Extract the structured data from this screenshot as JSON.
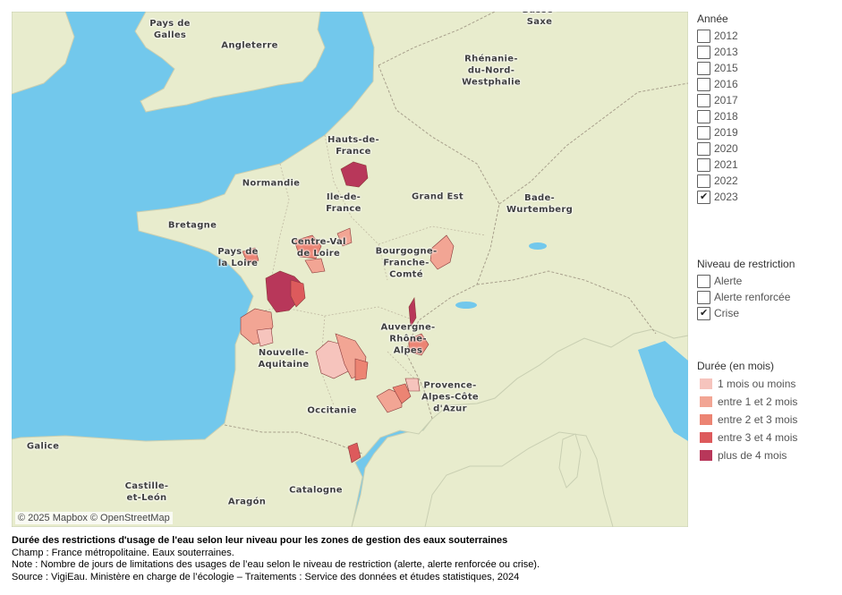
{
  "map": {
    "attribution": "© 2025 Mapbox © OpenStreetMap",
    "places": [
      {
        "id": "pays-de-galles",
        "text": "Pays de\nGalles"
      },
      {
        "id": "angleterre",
        "text": "Angleterre"
      },
      {
        "id": "basse-saxe",
        "text": "Basse-\nSaxe"
      },
      {
        "id": "rhenanie",
        "text": "Rhénanie-\ndu-Nord-\nWestphalie"
      },
      {
        "id": "hauts-de-france",
        "text": "Hauts-de-\nFrance"
      },
      {
        "id": "normandie",
        "text": "Normandie"
      },
      {
        "id": "ile-de-france",
        "text": "Ile-de-\nFrance"
      },
      {
        "id": "grand-est",
        "text": "Grand Est"
      },
      {
        "id": "bade-wurtemberg",
        "text": "Bade-\nWurtemberg"
      },
      {
        "id": "bretagne",
        "text": "Bretagne"
      },
      {
        "id": "pays-de-la-loire",
        "text": "Pays de\nla Loire"
      },
      {
        "id": "centre-val-de-loire",
        "text": "Centre-Val\nde Loire"
      },
      {
        "id": "bourgogne",
        "text": "Bourgogne-\nFranche-\nComté"
      },
      {
        "id": "auvergne",
        "text": "Auvergne-\nRhône-\nAlpes"
      },
      {
        "id": "nouvelle-aquitaine",
        "text": "Nouvelle-\nAquitaine"
      },
      {
        "id": "provence",
        "text": "Provence-\nAlpes-Côte\nd'Azur"
      },
      {
        "id": "occitanie",
        "text": "Occitanie"
      },
      {
        "id": "galice",
        "text": "Galice"
      },
      {
        "id": "castille",
        "text": "Castille-\net-León"
      },
      {
        "id": "aragon",
        "text": "Aragón"
      },
      {
        "id": "catalogne",
        "text": "Catalogne"
      }
    ]
  },
  "filters": {
    "annee": {
      "title": "Année",
      "options": [
        {
          "label": "2012",
          "checked": false
        },
        {
          "label": "2013",
          "checked": false
        },
        {
          "label": "2015",
          "checked": false
        },
        {
          "label": "2016",
          "checked": false
        },
        {
          "label": "2017",
          "checked": false
        },
        {
          "label": "2018",
          "checked": false
        },
        {
          "label": "2019",
          "checked": false
        },
        {
          "label": "2020",
          "checked": false
        },
        {
          "label": "2021",
          "checked": false
        },
        {
          "label": "2022",
          "checked": false
        },
        {
          "label": "2023",
          "checked": true
        }
      ]
    },
    "niveau": {
      "title": "Niveau de restriction",
      "options": [
        {
          "label": "Alerte",
          "checked": false
        },
        {
          "label": "Alerte renforcée",
          "checked": false
        },
        {
          "label": "Crise",
          "checked": true
        }
      ]
    }
  },
  "legend": {
    "title": "Durée (en mois)",
    "items": [
      {
        "label": "1 mois ou moins",
        "color": "#f6c4bd"
      },
      {
        "label": "entre 1 et 2 mois",
        "color": "#f2a594"
      },
      {
        "label": "entre 2 et 3 mois",
        "color": "#ec8473"
      },
      {
        "label": "entre 3 et 4 mois",
        "color": "#dd5a5c"
      },
      {
        "label": "plus de 4 mois",
        "color": "#b8375a"
      }
    ]
  },
  "colors": {
    "water": "#72c8ec",
    "land": "#e8eccd",
    "border": "#a8a08c"
  },
  "footer": {
    "title": "Durée des restrictions d'usage de l'eau selon leur niveau pour les zones de gestion des eaux souterraines",
    "champ": "Champ : France métropolitaine. Eaux souterraines.",
    "note": "Note : Nombre de jours de limitations des usages de l’eau selon le niveau de restriction (alerte, alerte renforcée ou crise).",
    "source": "Source : VigiEau.  Ministère en charge de l’écologie – Traitements : Service des données et études statistiques, 2024"
  }
}
